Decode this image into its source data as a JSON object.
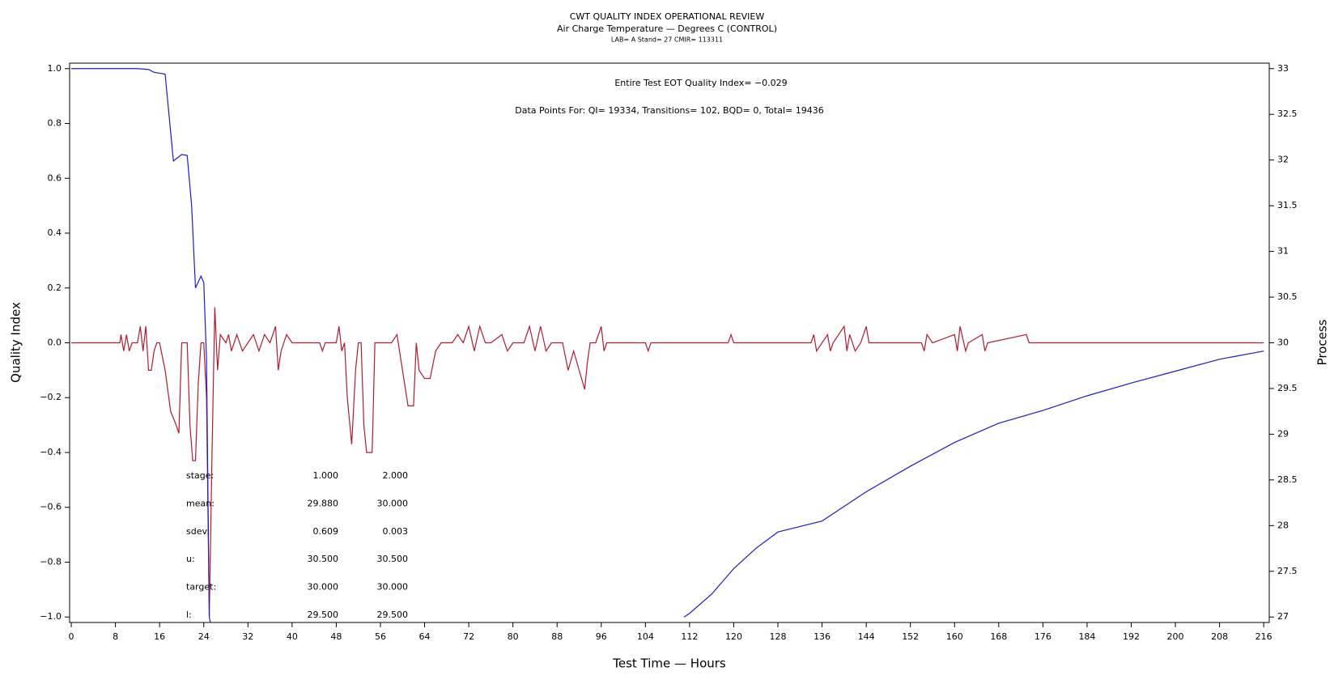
{
  "chart_data": {
    "type": "line",
    "title": "CWT QUALITY INDEX OPERATIONAL REVIEW",
    "subtitle": "Air Charge Temperature — Degrees C (CONTROL)",
    "caption": "LAB= A Stand= 27 CMIR= 113311",
    "x_label": "Test Time — Hours",
    "y_label": "Quality Index",
    "y2_label": "Process",
    "annotations": [
      "Entire Test EOT Quality Index=  −0.029",
      "Data Points For: QI= 19334, Transitions=   102, BQD=     0, Total= 19436"
    ],
    "stats_table": [
      [
        "stage:",
        "1.000",
        "2.000"
      ],
      [
        "mean:",
        "29.880",
        "30.000"
      ],
      [
        "sdev:",
        "0.609",
        "0.003"
      ],
      [
        "u:",
        "30.500",
        "30.500"
      ],
      [
        "target:",
        "30.000",
        "30.000"
      ],
      [
        "l:",
        "29.500",
        "29.500"
      ]
    ],
    "xlim": [
      -0.3,
      217
    ],
    "xticks": [
      0,
      8,
      16,
      24,
      32,
      40,
      48,
      56,
      64,
      72,
      80,
      88,
      96,
      104,
      112,
      120,
      128,
      136,
      144,
      152,
      160,
      168,
      176,
      184,
      192,
      200,
      208,
      216
    ],
    "ylim": [
      -1.02,
      1.02
    ],
    "yticks": [
      {
        "value": -1.0,
        "label": "−1.0"
      },
      {
        "value": -0.8,
        "label": "−0.8"
      },
      {
        "value": -0.6,
        "label": "−0.6"
      },
      {
        "value": -0.4,
        "label": "−0.4"
      },
      {
        "value": -0.2,
        "label": "−0.2"
      },
      {
        "value": 0,
        "label": "0.0"
      },
      {
        "value": 0.2,
        "label": "0.2"
      },
      {
        "value": 0.4,
        "label": "0.4"
      },
      {
        "value": 0.6,
        "label": "0.6"
      },
      {
        "value": 0.8,
        "label": "0.8"
      },
      {
        "value": 1.0,
        "label": "1.0"
      }
    ],
    "y2lim": [
      26.94,
      33.06
    ],
    "y2ticks": [
      27,
      27.5,
      28,
      28.5,
      29,
      29.5,
      30,
      30.5,
      31,
      31.5,
      32,
      32.5,
      33
    ],
    "grid": false,
    "series": [
      {
        "name": "Quality Index",
        "color": "#b01c2e",
        "x": [
          0,
          8.8,
          9,
          9.5,
          10,
          10.5,
          11,
          12,
          12.5,
          13,
          13.5,
          14,
          14.5,
          15,
          15.5,
          16,
          17,
          18,
          19,
          19.5,
          20,
          21,
          21.5,
          22,
          22.5,
          23,
          23.5,
          24,
          24.5,
          25,
          25.5,
          26,
          26.5,
          27,
          28,
          28.5,
          29,
          30,
          31,
          32,
          33,
          34,
          35,
          36,
          37,
          37.5,
          38,
          39,
          40,
          45,
          45.5,
          46,
          48,
          48.5,
          49,
          49.5,
          50,
          50.8,
          51.5,
          52,
          52.5,
          53,
          53.5,
          54.5,
          55,
          58,
          59,
          60,
          61,
          62,
          62.5,
          63,
          64,
          65,
          66,
          67,
          69,
          70,
          71,
          72,
          73,
          74,
          75,
          76,
          78,
          79,
          80,
          82,
          83,
          84,
          85,
          86,
          87,
          89,
          90,
          91,
          92,
          93,
          93.5,
          94,
          95,
          96,
          96.5,
          97,
          104,
          104.5,
          105,
          119,
          119.5,
          120,
          134,
          134.5,
          135,
          136,
          137,
          137.5,
          138,
          140,
          140.5,
          141,
          142,
          143,
          144,
          144.5,
          154,
          154.5,
          155,
          156,
          160,
          160.5,
          161,
          162,
          162.5,
          165,
          165.5,
          166,
          173,
          173.5,
          216
        ],
        "values": [
          0,
          0,
          0.03,
          -0.03,
          0.03,
          -0.03,
          0,
          0,
          0.06,
          -0.03,
          0.06,
          -0.1,
          -0.1,
          -0.03,
          0,
          0,
          -0.1,
          -0.25,
          -0.3,
          -0.33,
          0,
          0,
          -0.3,
          -0.43,
          -0.43,
          -0.15,
          0,
          0,
          -0.2,
          -1.0,
          -0.4,
          0.13,
          -0.1,
          0.03,
          0,
          0.03,
          -0.03,
          0.03,
          -0.03,
          0,
          0.03,
          -0.03,
          0.03,
          0,
          0.06,
          -0.1,
          -0.03,
          0.03,
          0,
          0,
          -0.03,
          0,
          0,
          0.06,
          -0.03,
          0,
          -0.2,
          -0.37,
          -0.1,
          0,
          0,
          -0.3,
          -0.4,
          -0.4,
          0,
          0,
          0.03,
          -0.1,
          -0.23,
          -0.23,
          0,
          -0.1,
          -0.13,
          -0.13,
          -0.03,
          0,
          0,
          0.03,
          0,
          0.06,
          -0.03,
          0.06,
          0,
          0,
          0.03,
          -0.03,
          0,
          0,
          0.06,
          -0.03,
          0.06,
          -0.03,
          0,
          0,
          -0.1,
          -0.03,
          -0.1,
          -0.17,
          -0.07,
          0,
          0,
          0.06,
          -0.03,
          0,
          0,
          -0.03,
          0,
          0,
          0.03,
          0,
          0,
          0.03,
          -0.03,
          0,
          0.03,
          -0.03,
          0,
          0.06,
          -0.03,
          0.03,
          -0.03,
          0,
          0.06,
          0,
          0,
          -0.03,
          0.03,
          0,
          0.03,
          -0.03,
          0.06,
          -0.03,
          0,
          0.03,
          -0.03,
          0,
          0.03,
          0,
          0
        ]
      },
      {
        "name": "Process",
        "color": "#1c1cc8",
        "axis": "y2",
        "x": [
          0,
          12,
          14,
          15,
          17,
          18.5,
          20,
          21,
          21.8,
          22.5,
          23.5,
          24,
          24.5,
          25,
          25.2,
          60,
          111,
          112,
          116,
          120,
          124,
          128,
          136,
          144,
          152,
          160,
          168,
          176,
          184,
          192,
          200,
          208,
          216
        ],
        "values": [
          33,
          33,
          32.99,
          32.96,
          32.94,
          31.99,
          32.06,
          32.05,
          31.5,
          30.6,
          30.73,
          30.66,
          29.82,
          27.0,
          26.94,
          null,
          27.0,
          27.04,
          27.25,
          27.53,
          27.75,
          27.93,
          28.05,
          28.37,
          28.65,
          28.91,
          29.12,
          29.26,
          29.42,
          29.56,
          29.69,
          29.82,
          29.91
        ]
      }
    ]
  }
}
